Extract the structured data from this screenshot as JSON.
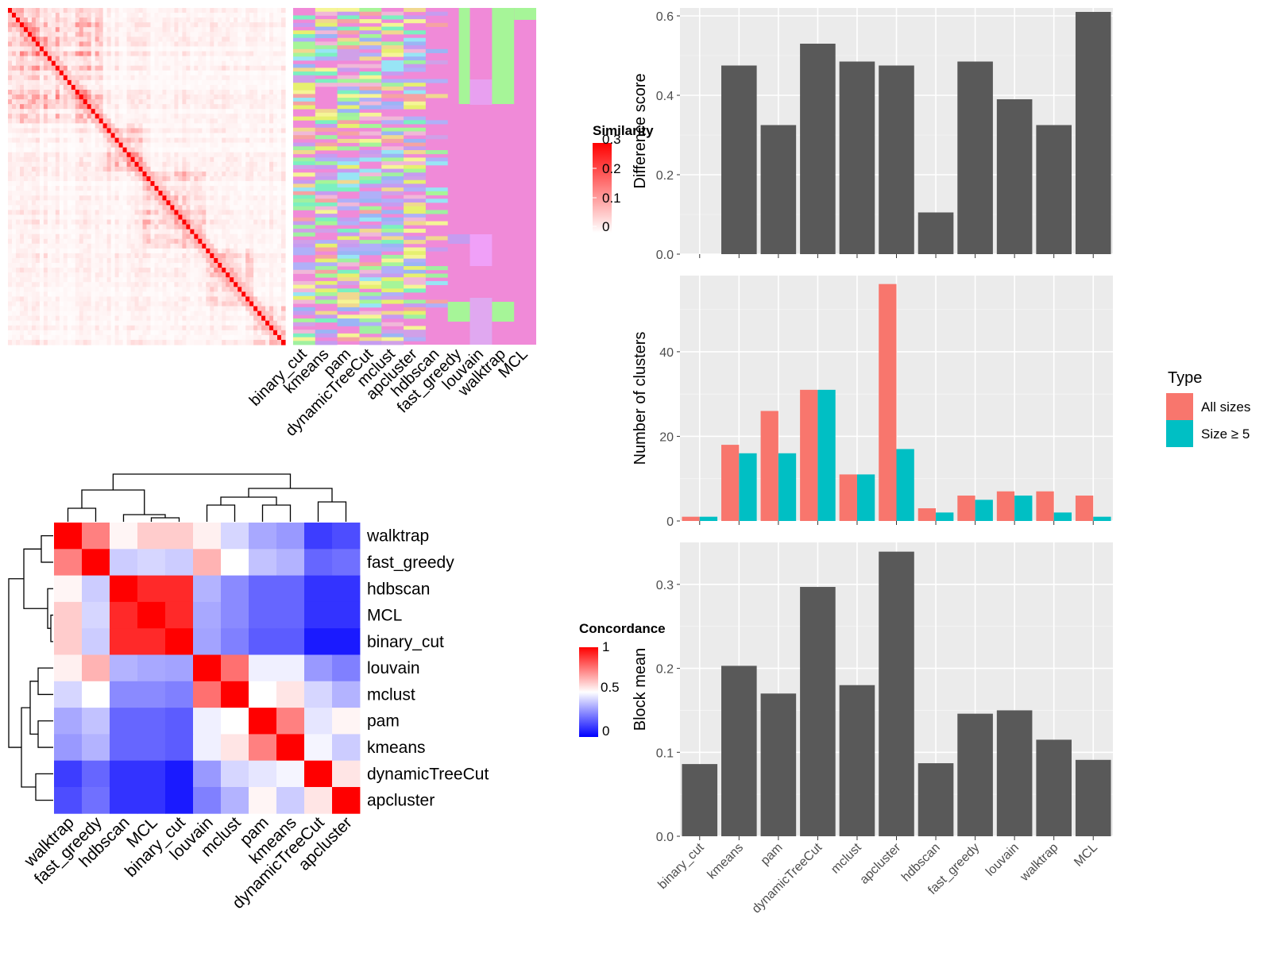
{
  "colors": {
    "sim_low": "#ffffff",
    "sim_high": "#ff0000",
    "conc_low": "#0000ff",
    "conc_mid": "#ffffff",
    "conc_high": "#ff0000",
    "bar": "#595959",
    "panel_bg": "#ebebeb",
    "grid": "#ffffff",
    "all_sizes": "#f8766d",
    "size5": "#00bfc4",
    "cluster_bg": "#f08ad8"
  },
  "chart_data": [
    {
      "type": "heatmap",
      "name": "similarity-heatmap",
      "legend_title": "Similarity",
      "legend_ticks": [
        "0.3",
        "0.2",
        "0.1",
        "0"
      ],
      "value_range": [
        0,
        0.3
      ]
    },
    {
      "type": "heatmap",
      "name": "cluster-assignments",
      "columns": [
        "binary_cut",
        "kmeans",
        "pam",
        "dynamicTreeCut",
        "mclust",
        "apcluster",
        "hdbscan",
        "fast_greedy",
        "louvain",
        "walktrap",
        "MCL"
      ]
    },
    {
      "type": "heatmap",
      "name": "concordance-heatmap",
      "legend_title": "Concordance",
      "legend_ticks": [
        "1",
        "0.5",
        "0"
      ],
      "order": [
        "walktrap",
        "fast_greedy",
        "hdbscan",
        "MCL",
        "binary_cut",
        "louvain",
        "mclust",
        "pam",
        "kmeans",
        "dynamicTreeCut",
        "apcluster"
      ],
      "values": [
        [
          1.0,
          0.75,
          0.52,
          0.6,
          0.6,
          0.53,
          0.42,
          0.33,
          0.3,
          0.12,
          0.15
        ],
        [
          0.75,
          1.0,
          0.4,
          0.42,
          0.4,
          0.65,
          0.5,
          0.38,
          0.35,
          0.2,
          0.22
        ],
        [
          0.52,
          0.4,
          1.0,
          0.92,
          0.92,
          0.35,
          0.27,
          0.2,
          0.2,
          0.1,
          0.1
        ],
        [
          0.6,
          0.42,
          0.92,
          1.0,
          0.92,
          0.33,
          0.27,
          0.2,
          0.2,
          0.1,
          0.1
        ],
        [
          0.6,
          0.4,
          0.92,
          0.92,
          1.0,
          0.32,
          0.25,
          0.18,
          0.18,
          0.05,
          0.05
        ],
        [
          0.53,
          0.65,
          0.35,
          0.33,
          0.32,
          1.0,
          0.78,
          0.47,
          0.47,
          0.3,
          0.25
        ],
        [
          0.42,
          0.5,
          0.27,
          0.27,
          0.25,
          0.78,
          1.0,
          0.5,
          0.55,
          0.42,
          0.35
        ],
        [
          0.33,
          0.38,
          0.2,
          0.2,
          0.18,
          0.47,
          0.5,
          1.0,
          0.75,
          0.45,
          0.52
        ],
        [
          0.3,
          0.35,
          0.2,
          0.2,
          0.18,
          0.47,
          0.55,
          0.75,
          1.0,
          0.48,
          0.4
        ],
        [
          0.12,
          0.2,
          0.1,
          0.1,
          0.05,
          0.3,
          0.42,
          0.45,
          0.48,
          1.0,
          0.55
        ],
        [
          0.15,
          0.22,
          0.1,
          0.1,
          0.05,
          0.25,
          0.35,
          0.52,
          0.4,
          0.55,
          1.0
        ]
      ]
    },
    {
      "type": "bar",
      "name": "difference-score",
      "categories": [
        "binary_cut",
        "kmeans",
        "pam",
        "dynamicTreeCut",
        "mclust",
        "apcluster",
        "hdbscan",
        "fast_greedy",
        "louvain",
        "walktrap",
        "MCL"
      ],
      "values": [
        0.0,
        0.475,
        0.325,
        0.53,
        0.485,
        0.475,
        0.105,
        0.485,
        0.39,
        0.325,
        0.61
      ],
      "ylabel": "Difference score",
      "ylim": [
        0,
        0.62
      ],
      "yticks": [
        0.0,
        0.2,
        0.4,
        0.6
      ],
      "ytick_labels": [
        "0.0",
        "0.2",
        "0.4",
        "0.6"
      ]
    },
    {
      "type": "bar",
      "name": "number-of-clusters",
      "categories": [
        "binary_cut",
        "kmeans",
        "pam",
        "dynamicTreeCut",
        "mclust",
        "apcluster",
        "hdbscan",
        "fast_greedy",
        "louvain",
        "walktrap",
        "MCL"
      ],
      "series": [
        {
          "name": "All sizes",
          "values": [
            1,
            18,
            26,
            31,
            11,
            56,
            3,
            6,
            7,
            7,
            6
          ]
        },
        {
          "name": "Size ≥ 5",
          "values": [
            1,
            16,
            16,
            31,
            11,
            17,
            2,
            5,
            6,
            2,
            1
          ]
        }
      ],
      "ylabel": "Number of clusters",
      "ylim": [
        0,
        58
      ],
      "yticks": [
        0,
        20,
        40
      ],
      "ytick_labels": [
        "0",
        "20",
        "40"
      ],
      "legend_title": "Type",
      "legend": "right"
    },
    {
      "type": "bar",
      "name": "block-mean",
      "categories": [
        "binary_cut",
        "kmeans",
        "pam",
        "dynamicTreeCut",
        "mclust",
        "apcluster",
        "hdbscan",
        "fast_greedy",
        "louvain",
        "walktrap",
        "MCL"
      ],
      "values": [
        0.086,
        0.203,
        0.17,
        0.297,
        0.18,
        0.339,
        0.087,
        0.146,
        0.15,
        0.115,
        0.091
      ],
      "ylabel": "Block mean",
      "ylim": [
        0,
        0.35
      ],
      "yticks": [
        0.0,
        0.1,
        0.2,
        0.3
      ],
      "ytick_labels": [
        "0.0",
        "0.1",
        "0.2",
        "0.3"
      ]
    }
  ]
}
